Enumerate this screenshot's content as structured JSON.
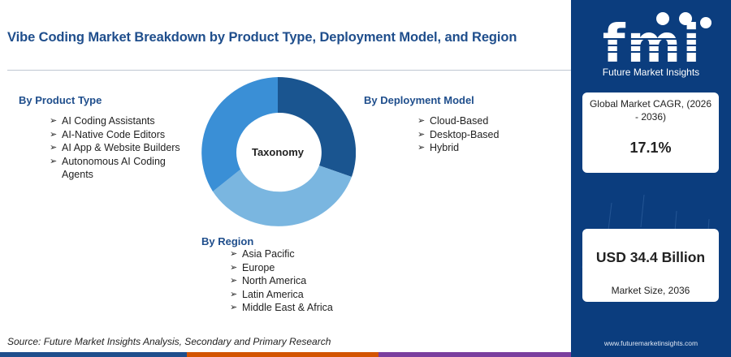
{
  "title": "Vibe Coding Market Breakdown by Product Type, Deployment Model, and Region",
  "center_label": "Taxonomy",
  "groups": {
    "product_type": {
      "heading": "By Product Type",
      "items": [
        "AI Coding Assistants",
        "AI-Native Code Editors",
        "AI App & Website Builders",
        "Autonomous AI Coding Agents"
      ]
    },
    "deployment_model": {
      "heading": "By Deployment Model",
      "items": [
        "Cloud-Based",
        "Desktop-Based",
        "Hybrid"
      ]
    },
    "region": {
      "heading": "By Region",
      "items": [
        "Asia Pacific",
        "Europe",
        "North America",
        "Latin America",
        "Middle East & Africa"
      ]
    }
  },
  "donut_segments": [
    {
      "segment": "deployment-model",
      "color": "#1a5590"
    },
    {
      "segment": "region",
      "color": "#7ab6e0"
    },
    {
      "segment": "product-type",
      "color": "#3a8fd6"
    }
  ],
  "source": "Source: Future Market Insights Analysis, Secondary and Primary Research",
  "brand": {
    "logo_text": "fmi",
    "name": "Future Market Insights",
    "url": "www.futuremarketinsights.com"
  },
  "stats": {
    "cagr_label": "Global Market CAGR, (2026 - 2036)",
    "cagr_value": "17.1%",
    "size_value": "USD 34.4 Billion",
    "size_label": "Market Size, 2036"
  },
  "colors": {
    "title": "#1f4e8c",
    "sidebar": "#0b3d7e",
    "bottom_bar": [
      "#1f4e8c",
      "#d35400",
      "#7a3e9e"
    ]
  }
}
